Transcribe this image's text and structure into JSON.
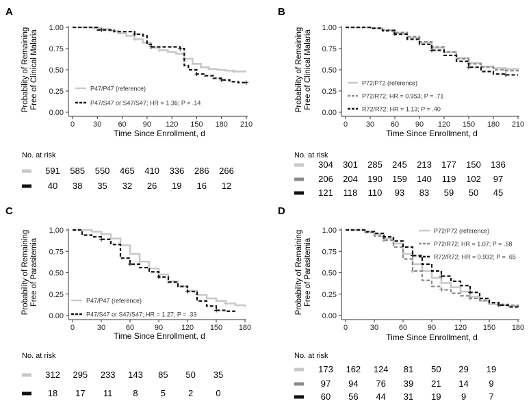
{
  "chart_data": [
    {
      "type": "line",
      "panel_label": "A",
      "title": "",
      "xlabel": "Time Since Enrollment, d",
      "ylabel": [
        "Probability of Remaining",
        "Free of Clinical Malaria"
      ],
      "xlim": [
        0,
        210
      ],
      "ylim": [
        0,
        1
      ],
      "xticks": [
        0,
        30,
        60,
        90,
        120,
        150,
        180,
        210
      ],
      "yticks": [
        "0.00",
        "0.25",
        "0.50",
        "0.75",
        "1.00"
      ],
      "legend_position": "bottom-left",
      "series": [
        {
          "name": "P47/P47 (reference)",
          "style": "solid",
          "color": "#c8c8c8",
          "x": [
            0,
            25,
            35,
            45,
            55,
            65,
            75,
            85,
            95,
            105,
            115,
            125,
            135,
            145,
            155,
            165,
            175,
            185,
            195,
            200,
            210
          ],
          "y": [
            1.0,
            0.99,
            0.98,
            0.96,
            0.93,
            0.9,
            0.86,
            0.82,
            0.76,
            0.73,
            0.71,
            0.69,
            0.63,
            0.57,
            0.53,
            0.51,
            0.5,
            0.49,
            0.48,
            0.48,
            0.48
          ]
        },
        {
          "name": "P47/S47 or S47/S47; HR = 1.36; P = .14",
          "style": "dashed",
          "color": "#111111",
          "x": [
            0,
            20,
            30,
            35,
            50,
            60,
            75,
            85,
            90,
            95,
            110,
            120,
            130,
            135,
            140,
            150,
            160,
            170,
            180,
            190,
            200,
            210
          ],
          "y": [
            1.0,
            1.0,
            0.97,
            0.97,
            0.95,
            0.95,
            0.92,
            0.9,
            0.8,
            0.77,
            0.77,
            0.77,
            0.75,
            0.55,
            0.5,
            0.45,
            0.43,
            0.4,
            0.38,
            0.36,
            0.35,
            0.35
          ]
        }
      ],
      "risk_table": {
        "title": "No. at risk",
        "rows": [
          {
            "color": "#c8c8c8",
            "values": [
              "591",
              "585",
              "550",
              "465",
              "410",
              "336",
              "286",
              "266"
            ]
          },
          {
            "color": "#111111",
            "values": [
              "40",
              "38",
              "35",
              "32",
              "26",
              "19",
              "16",
              "12"
            ]
          }
        ]
      }
    },
    {
      "type": "line",
      "panel_label": "B",
      "title": "",
      "xlabel": "Time Since Enrollment, d",
      "ylabel": [
        "Probability of Remaining",
        "Free of Clinical Malaria"
      ],
      "xlim": [
        0,
        210
      ],
      "ylim": [
        0,
        1
      ],
      "xticks": [
        0,
        30,
        60,
        90,
        120,
        150,
        180,
        210
      ],
      "yticks": [
        "0.00",
        "0.25",
        "0.50",
        "0.75",
        "1.00"
      ],
      "legend_position": "bottom-left",
      "series": [
        {
          "name": "P72/P72 (reference)",
          "style": "solid",
          "color": "#c8c8c8",
          "x": [
            0,
            30,
            45,
            60,
            75,
            90,
            105,
            120,
            135,
            150,
            165,
            180,
            195,
            210
          ],
          "y": [
            1.0,
            0.99,
            0.97,
            0.93,
            0.88,
            0.82,
            0.76,
            0.71,
            0.64,
            0.58,
            0.54,
            0.52,
            0.51,
            0.5
          ]
        },
        {
          "name": "P72/R72; HR = 0.953; P = .71",
          "style": "dashed",
          "color": "#8c8c8c",
          "x": [
            0,
            30,
            45,
            60,
            75,
            90,
            105,
            120,
            135,
            150,
            165,
            180,
            195,
            210
          ],
          "y": [
            1.0,
            0.99,
            0.97,
            0.94,
            0.89,
            0.83,
            0.77,
            0.71,
            0.63,
            0.57,
            0.53,
            0.5,
            0.49,
            0.48
          ]
        },
        {
          "name": "R72/R72; HR = 1.13; P = .40",
          "style": "dashed",
          "color": "#111111",
          "x": [
            0,
            30,
            45,
            60,
            75,
            90,
            105,
            120,
            135,
            150,
            165,
            180,
            195,
            210
          ],
          "y": [
            1.0,
            0.99,
            0.96,
            0.92,
            0.86,
            0.8,
            0.73,
            0.67,
            0.6,
            0.53,
            0.48,
            0.45,
            0.44,
            0.44
          ]
        }
      ],
      "risk_table": {
        "title": "No. at risk",
        "rows": [
          {
            "color": "#c8c8c8",
            "values": [
              "304",
              "301",
              "285",
              "245",
              "213",
              "177",
              "150",
              "136"
            ]
          },
          {
            "color": "#8c8c8c",
            "values": [
              "206",
              "204",
              "190",
              "159",
              "140",
              "119",
              "102",
              "97"
            ]
          },
          {
            "color": "#111111",
            "values": [
              "121",
              "118",
              "110",
              "93",
              "83",
              "59",
              "50",
              "45"
            ]
          }
        ]
      }
    },
    {
      "type": "line",
      "panel_label": "C",
      "title": "",
      "xlabel": "Time Since Enrollment, d",
      "ylabel": [
        "Probability of Remaining",
        "Free of Parasitemia"
      ],
      "xlim": [
        0,
        180
      ],
      "ylim": [
        0,
        1
      ],
      "xticks": [
        0,
        30,
        60,
        90,
        120,
        150,
        180
      ],
      "yticks": [
        "0.00",
        "0.25",
        "0.50",
        "0.75",
        "1.00"
      ],
      "legend_position": "bottom-left",
      "series": [
        {
          "name": "P47/P47 (reference)",
          "style": "solid",
          "color": "#c8c8c8",
          "x": [
            0,
            20,
            30,
            40,
            50,
            60,
            70,
            80,
            90,
            100,
            110,
            120,
            130,
            140,
            150,
            160,
            170,
            180
          ],
          "y": [
            1.0,
            0.98,
            0.95,
            0.9,
            0.82,
            0.72,
            0.63,
            0.55,
            0.48,
            0.4,
            0.34,
            0.29,
            0.24,
            0.2,
            0.17,
            0.14,
            0.12,
            0.1
          ]
        },
        {
          "name": "P47/S47 or S47/S47; HR = 1.27; P = .33",
          "style": "dashed",
          "color": "#111111",
          "x": [
            0,
            10,
            20,
            30,
            40,
            50,
            60,
            70,
            80,
            90,
            100,
            110,
            120,
            130,
            140,
            150,
            160,
            170
          ],
          "y": [
            1.0,
            0.94,
            0.92,
            0.89,
            0.83,
            0.67,
            0.6,
            0.56,
            0.51,
            0.45,
            0.39,
            0.34,
            0.28,
            0.17,
            0.11,
            0.06,
            0.05,
            0.05
          ]
        }
      ],
      "risk_table": {
        "title": "No. at risk",
        "rows": [
          {
            "color": "#c8c8c8",
            "values": [
              "312",
              "295",
              "233",
              "143",
              "85",
              "50",
              "35"
            ]
          },
          {
            "color": "#111111",
            "values": [
              "18",
              "17",
              "11",
              "8",
              "5",
              "2",
              "0"
            ]
          }
        ]
      }
    },
    {
      "type": "line",
      "panel_label": "D",
      "title": "",
      "xlabel": "Time Since Enrollment, d",
      "ylabel": [
        "Probability of Remaining",
        "Free of Parasitemia"
      ],
      "xlim": [
        0,
        180
      ],
      "ylim": [
        0,
        1
      ],
      "xticks": [
        0,
        30,
        60,
        90,
        120,
        150,
        180
      ],
      "yticks": [
        "0.00",
        "0.25",
        "0.50",
        "0.75",
        "1.00"
      ],
      "legend_position": "top-right",
      "series": [
        {
          "name": "P72/P72 (reference)",
          "style": "solid",
          "color": "#c8c8c8",
          "x": [
            0,
            20,
            30,
            40,
            50,
            60,
            70,
            80,
            90,
            100,
            110,
            120,
            130,
            140,
            150,
            160,
            170,
            180
          ],
          "y": [
            1.0,
            0.98,
            0.95,
            0.9,
            0.84,
            0.72,
            0.6,
            0.52,
            0.44,
            0.38,
            0.33,
            0.28,
            0.22,
            0.17,
            0.13,
            0.12,
            0.11,
            0.1
          ]
        },
        {
          "name": "P72/R72; HR = 1.07; P = .58",
          "style": "dashed",
          "color": "#8c8c8c",
          "x": [
            0,
            20,
            30,
            40,
            50,
            60,
            70,
            80,
            90,
            100,
            110,
            120,
            130,
            140,
            150,
            160,
            170,
            180
          ],
          "y": [
            1.0,
            0.97,
            0.93,
            0.88,
            0.8,
            0.66,
            0.52,
            0.41,
            0.34,
            0.3,
            0.26,
            0.23,
            0.2,
            0.18,
            0.15,
            0.13,
            0.12,
            0.11
          ]
        },
        {
          "name": "R72/R72; HR = 0.932; P = .65",
          "style": "dashed",
          "color": "#111111",
          "x": [
            0,
            20,
            30,
            40,
            50,
            60,
            70,
            80,
            90,
            100,
            110,
            120,
            130,
            140,
            150,
            160,
            170,
            180
          ],
          "y": [
            1.0,
            0.98,
            0.96,
            0.92,
            0.87,
            0.8,
            0.7,
            0.6,
            0.52,
            0.46,
            0.4,
            0.35,
            0.27,
            0.2,
            0.15,
            0.12,
            0.1,
            0.08
          ]
        }
      ],
      "risk_table": {
        "title": "No. at risk",
        "rows": [
          {
            "color": "#c8c8c8",
            "values": [
              "173",
              "162",
              "124",
              "81",
              "50",
              "29",
              "19"
            ]
          },
          {
            "color": "#8c8c8c",
            "values": [
              "97",
              "94",
              "76",
              "39",
              "21",
              "14",
              "9"
            ]
          },
          {
            "color": "#111111",
            "values": [
              "60",
              "56",
              "44",
              "31",
              "19",
              "9",
              "7"
            ]
          }
        ]
      }
    }
  ]
}
